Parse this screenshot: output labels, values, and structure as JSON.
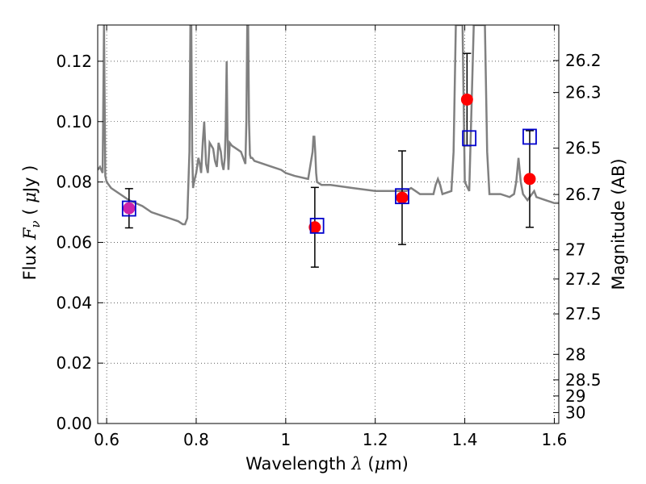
{
  "chart_data": {
    "type": "scatter",
    "xlabel": "Wavelength  λ (μm)",
    "ylabel": "Flux  F_ν  ( μJy )",
    "ylabel_right": "Magnitude (AB)",
    "xlim": [
      0.58,
      1.61
    ],
    "ylim": [
      0.0,
      0.132
    ],
    "grid": true,
    "x_ticks": [
      0.6,
      0.8,
      1.0,
      1.2,
      1.4,
      1.6
    ],
    "x_tick_labels": [
      "0.6",
      "0.8",
      "1",
      "1.2",
      "1.4",
      "1.6"
    ],
    "y_ticks": [
      0.0,
      0.02,
      0.04,
      0.06,
      0.08,
      0.1,
      0.12
    ],
    "y_tick_labels": [
      "0.00",
      "0.02",
      "0.04",
      "0.06",
      "0.08",
      "0.10",
      "0.12"
    ],
    "mag_ticks": [
      26.2,
      26.3,
      26.5,
      26.7,
      27,
      27.2,
      27.5,
      28,
      28.5,
      29,
      30
    ],
    "mag_tick_labels": [
      "26.2",
      "26.3",
      "26.5",
      "26.7",
      "27",
      "27.2",
      "27.5",
      "28",
      "28.5",
      "29",
      "30"
    ],
    "series": [
      {
        "kind": "observed",
        "marker": "red-circle",
        "x": [
          0.65,
          1.065,
          1.26,
          1.405,
          1.545
        ],
        "y": [
          0.0713,
          0.065,
          0.0748,
          0.1073,
          0.081
        ],
        "yerr_low": [
          0.0065,
          0.0132,
          0.0155,
          0.0153,
          0.016
        ],
        "yerr_high": [
          0.0065,
          0.0132,
          0.0155,
          0.0153,
          0.016
        ]
      },
      {
        "kind": "model-photometry",
        "marker": "blue-open-square",
        "x": [
          0.65,
          1.07,
          1.26,
          1.41,
          1.545
        ],
        "y": [
          0.0712,
          0.0655,
          0.0753,
          0.0945,
          0.095
        ]
      },
      {
        "kind": "model-spectrum",
        "line": "gray",
        "x": [
          0.58,
          0.585,
          0.588,
          0.591,
          0.594,
          0.597,
          0.6,
          0.61,
          0.63,
          0.65,
          0.68,
          0.7,
          0.72,
          0.74,
          0.76,
          0.77,
          0.775,
          0.78,
          0.785,
          0.787,
          0.789,
          0.791,
          0.793,
          0.795,
          0.8,
          0.805,
          0.808,
          0.811,
          0.815,
          0.818,
          0.822,
          0.826,
          0.83,
          0.834,
          0.838,
          0.842,
          0.846,
          0.85,
          0.855,
          0.858,
          0.861,
          0.864,
          0.866,
          0.868,
          0.87,
          0.872,
          0.875,
          0.88,
          0.89,
          0.9,
          0.905,
          0.91,
          0.912,
          0.914,
          0.916,
          0.918,
          0.92,
          0.922,
          0.925,
          0.93,
          0.95,
          0.97,
          0.99,
          1.0,
          1.02,
          1.05,
          1.06,
          1.062,
          1.064,
          1.066,
          1.068,
          1.07,
          1.08,
          1.1,
          1.15,
          1.2,
          1.25,
          1.27,
          1.28,
          1.29,
          1.3,
          1.32,
          1.33,
          1.335,
          1.34,
          1.345,
          1.35,
          1.37,
          1.375,
          1.38,
          1.385,
          1.39,
          1.395,
          1.4,
          1.41,
          1.42,
          1.43,
          1.44,
          1.445,
          1.45,
          1.455,
          1.46,
          1.47,
          1.48,
          1.5,
          1.51,
          1.515,
          1.52,
          1.525,
          1.53,
          1.535,
          1.54,
          1.545,
          1.55,
          1.555,
          1.56,
          1.58,
          1.6,
          1.61
        ],
        "y": [
          0.084,
          0.085,
          0.084,
          0.083,
          0.132,
          0.082,
          0.08,
          0.078,
          0.076,
          0.074,
          0.072,
          0.07,
          0.069,
          0.068,
          0.067,
          0.066,
          0.066,
          0.068,
          0.09,
          0.132,
          0.132,
          0.09,
          0.078,
          0.08,
          0.083,
          0.088,
          0.086,
          0.083,
          0.094,
          0.1,
          0.086,
          0.083,
          0.093,
          0.092,
          0.091,
          0.087,
          0.085,
          0.093,
          0.09,
          0.086,
          0.084,
          0.088,
          0.098,
          0.12,
          0.094,
          0.084,
          0.093,
          0.092,
          0.091,
          0.09,
          0.088,
          0.086,
          0.1,
          0.132,
          0.132,
          0.1,
          0.089,
          0.088,
          0.088,
          0.087,
          0.086,
          0.085,
          0.084,
          0.083,
          0.082,
          0.081,
          0.09,
          0.095,
          0.095,
          0.09,
          0.083,
          0.08,
          0.079,
          0.079,
          0.078,
          0.077,
          0.077,
          0.077,
          0.078,
          0.077,
          0.076,
          0.076,
          0.076,
          0.079,
          0.081,
          0.079,
          0.076,
          0.077,
          0.09,
          0.132,
          0.132,
          0.132,
          0.132,
          0.08,
          0.077,
          0.132,
          0.132,
          0.132,
          0.132,
          0.09,
          0.076,
          0.076,
          0.076,
          0.076,
          0.075,
          0.076,
          0.08,
          0.088,
          0.08,
          0.076,
          0.075,
          0.074,
          0.075,
          0.076,
          0.077,
          0.075,
          0.074,
          0.073,
          0.073
        ]
      }
    ]
  }
}
